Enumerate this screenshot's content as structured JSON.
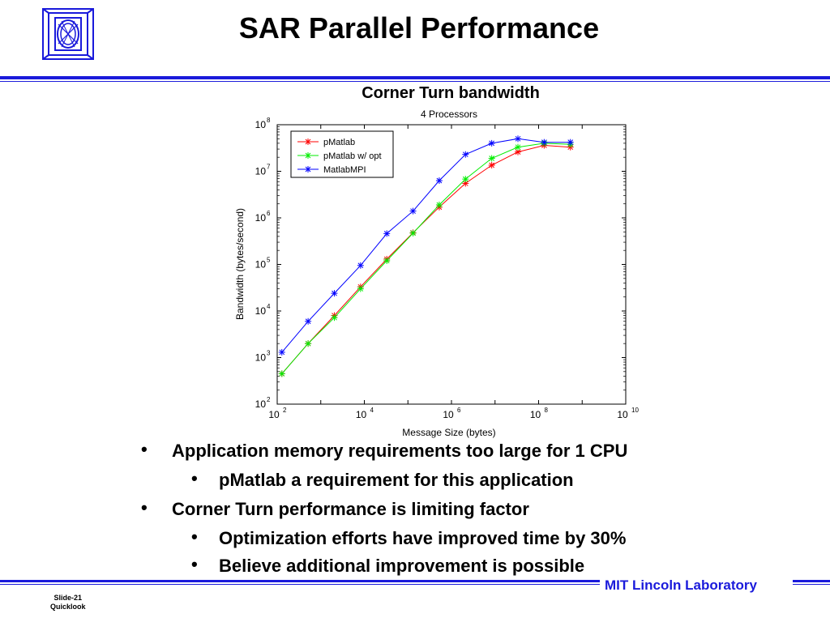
{
  "header": {
    "title": "SAR Parallel Performance"
  },
  "chart_data": {
    "type": "line",
    "title": "Corner Turn bandwidth",
    "subtitle": "4 Processors",
    "xlabel": "Message Size (bytes)",
    "ylabel": "Bandwidth (bytes/second)",
    "xscale": "log",
    "yscale": "log",
    "xlim": [
      100,
      10000000000
    ],
    "ylim": [
      100,
      100000000
    ],
    "x_ticks": [
      {
        "base": "10",
        "exp": "2"
      },
      {
        "base": "10",
        "exp": "4"
      },
      {
        "base": "10",
        "exp": "6"
      },
      {
        "base": "10",
        "exp": "8"
      },
      {
        "base": "10",
        "exp": "10"
      }
    ],
    "y_ticks": [
      {
        "base": "10",
        "exp": "2"
      },
      {
        "base": "10",
        "exp": "3"
      },
      {
        "base": "10",
        "exp": "4"
      },
      {
        "base": "10",
        "exp": "5"
      },
      {
        "base": "10",
        "exp": "6"
      },
      {
        "base": "10",
        "exp": "7"
      },
      {
        "base": "10",
        "exp": "8"
      }
    ],
    "grid": false,
    "legend_position": "top-left",
    "series": [
      {
        "name": "pMatlab",
        "color": "#ff0000",
        "x": [
          128,
          512,
          2048,
          8192,
          32768,
          131072,
          524288,
          2097152,
          8388608,
          33554432,
          134217728,
          536870912
        ],
        "y": [
          450,
          2000,
          8000,
          33000,
          130000,
          480000,
          1700000,
          5500000,
          13500000,
          26000000,
          36000000,
          33000000
        ]
      },
      {
        "name": "pMatlab w/ opt",
        "color": "#00ee00",
        "x": [
          128,
          512,
          2048,
          8192,
          32768,
          131072,
          524288,
          2097152,
          8388608,
          33554432,
          134217728,
          536870912
        ],
        "y": [
          450,
          2000,
          7200,
          30000,
          120000,
          470000,
          1900000,
          6800000,
          19000000,
          33000000,
          40000000,
          38000000
        ]
      },
      {
        "name": "MatlabMPI",
        "color": "#0000ff",
        "x": [
          128,
          512,
          2048,
          8192,
          32768,
          131072,
          524288,
          2097152,
          8388608,
          33554432,
          134217728,
          536870912
        ],
        "y": [
          1300,
          6000,
          24000,
          95000,
          460000,
          1400000,
          6300000,
          23000000,
          40000000,
          50000000,
          42000000,
          42000000
        ]
      }
    ]
  },
  "bullets": [
    {
      "level": 1,
      "symbol": "•",
      "text": "Application memory requirements too large for 1 CPU"
    },
    {
      "level": 2,
      "symbol": "•",
      "text": "pMatlab a requirement for this application"
    },
    {
      "level": 1,
      "symbol": "•",
      "text": "Corner Turn performance is limiting factor"
    },
    {
      "level": 2,
      "symbol": "•",
      "text": "Optimization efforts have improved time by 30%"
    },
    {
      "level": 2,
      "symbol": "•",
      "text": "Believe additional improvement is possible"
    }
  ],
  "footer": {
    "lab_name": "MIT Lincoln Laboratory",
    "slide_number": "Slide-21",
    "slide_tag": "Quicklook"
  },
  "colors": {
    "accent": "#1a1adb"
  }
}
